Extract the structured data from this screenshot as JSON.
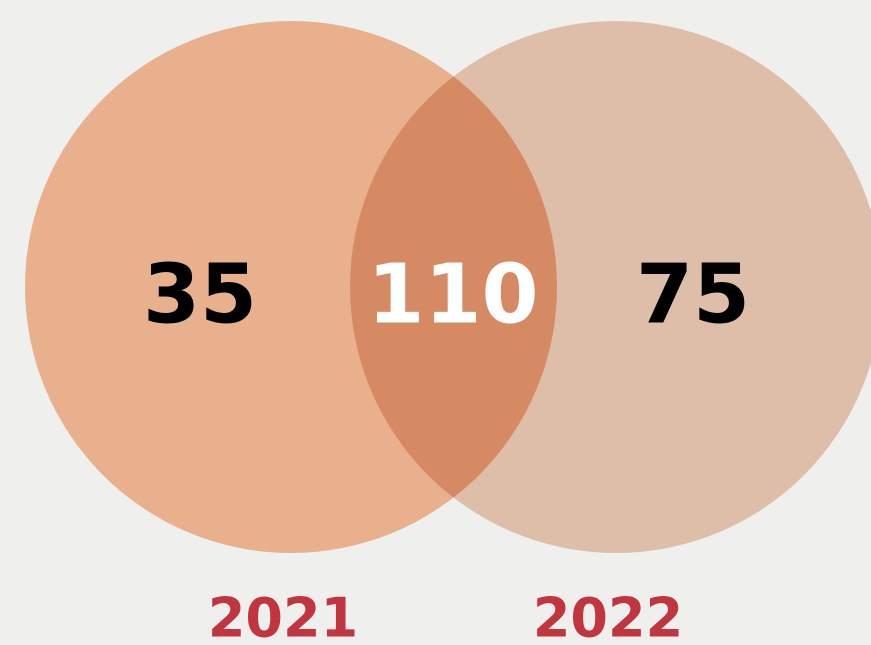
{
  "chart_data": {
    "type": "venn",
    "sets": [
      {
        "name": "2021",
        "value": 35,
        "color": "#e8b08c"
      },
      {
        "name": "2022",
        "value": 75,
        "color": "#dfbea9"
      }
    ],
    "intersection": {
      "value": 110,
      "color": "#d68a63"
    }
  }
}
